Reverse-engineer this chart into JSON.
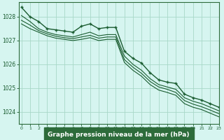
{
  "title": "Graphe pression niveau de la mer (hPa)",
  "bg_color": "#d6f5f0",
  "xlabel_bg": "#2d6b3a",
  "grid_color": "#a8d8c8",
  "line_color": "#1a5c30",
  "spine_color": "#2d6b3a",
  "xlim": [
    -0.3,
    23
  ],
  "ylim": [
    1023.5,
    1028.6
  ],
  "yticks": [
    1024,
    1025,
    1026,
    1027,
    1028
  ],
  "xtick_labels": [
    "0",
    "1",
    "2",
    "3",
    "4",
    "5",
    "6",
    "7",
    "8",
    "9",
    "10",
    "11",
    "12",
    "13",
    "14",
    "15",
    "16",
    "17",
    "18",
    "19",
    "20",
    "21",
    "22",
    "23"
  ],
  "xticks": [
    0,
    1,
    2,
    3,
    4,
    5,
    6,
    7,
    8,
    9,
    10,
    11,
    12,
    13,
    14,
    15,
    16,
    17,
    18,
    19,
    20,
    21,
    22,
    23
  ],
  "series_with_markers": [
    1028.4,
    1028.0,
    1027.8,
    1027.5,
    1027.45,
    1027.4,
    1027.35,
    1027.6,
    1027.7,
    1027.5,
    1027.55,
    1027.55,
    1026.55,
    1026.25,
    1026.05,
    1025.65,
    1025.35,
    1025.25,
    1025.2,
    1024.75,
    1024.6,
    1024.5,
    1024.35,
    1024.2
  ],
  "series_plain": [
    [
      1028.05,
      1027.8,
      1027.5,
      1027.35,
      1027.25,
      1027.2,
      1027.15,
      1027.25,
      1027.35,
      1027.2,
      1027.25,
      1027.25,
      1026.35,
      1026.0,
      1025.75,
      1025.4,
      1025.15,
      1025.05,
      1024.95,
      1024.6,
      1024.45,
      1024.35,
      1024.2,
      1024.05
    ],
    [
      1027.85,
      1027.65,
      1027.42,
      1027.28,
      1027.18,
      1027.12,
      1027.08,
      1027.15,
      1027.22,
      1027.1,
      1027.15,
      1027.15,
      1026.2,
      1025.88,
      1025.62,
      1025.28,
      1025.05,
      1024.95,
      1024.82,
      1024.48,
      1024.33,
      1024.22,
      1024.08,
      1023.93
    ],
    [
      1027.7,
      1027.5,
      1027.35,
      1027.2,
      1027.1,
      1027.05,
      1027.0,
      1027.05,
      1027.12,
      1027.0,
      1027.05,
      1027.05,
      1026.08,
      1025.75,
      1025.5,
      1025.15,
      1024.92,
      1024.82,
      1024.7,
      1024.35,
      1024.2,
      1024.1,
      1023.95,
      1023.8
    ]
  ]
}
